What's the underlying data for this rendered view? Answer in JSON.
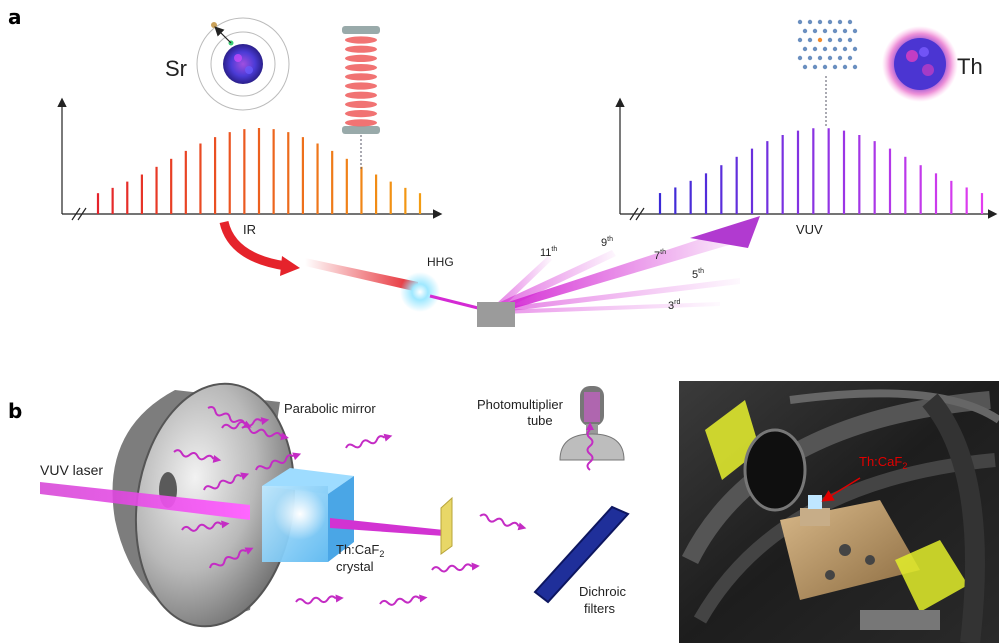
{
  "panel_a": {
    "label": "a",
    "left": {
      "atom_label": "Sr",
      "axis_label": "IR",
      "comb_count": 23,
      "comb_colors": [
        "#e5232b",
        "#f39c12"
      ]
    },
    "right": {
      "atom_label": "Th",
      "axis_label": "VUV",
      "comb_count": 22,
      "comb_colors": [
        "#3a2ad6",
        "#e33df0"
      ]
    },
    "hhg_label": "HHG",
    "harmonics": [
      {
        "base": "11",
        "sup": "th"
      },
      {
        "base": "9",
        "sup": "th"
      },
      {
        "base": "7",
        "sup": "th"
      },
      {
        "base": "5",
        "sup": "th"
      },
      {
        "base": "3",
        "sup": "rd"
      }
    ]
  },
  "panel_b": {
    "label": "b",
    "vuv_laser": "VUV laser",
    "parabolic_mirror": "Parabolic mirror",
    "crystal_line1_pre": "Th:CaF",
    "crystal_line1_sub": "2",
    "crystal_line2": "crystal",
    "pmt_line1": "Photomultiplier",
    "pmt_line2": "tube",
    "dichroic_line1": "Dichroic",
    "dichroic_line2": "filters",
    "photo_label_pre": "Th:CaF",
    "photo_label_sub": "2"
  },
  "colors": {
    "ir": "#e5232b",
    "vuv": "#cc33cc",
    "photo_label": "#e00000"
  }
}
